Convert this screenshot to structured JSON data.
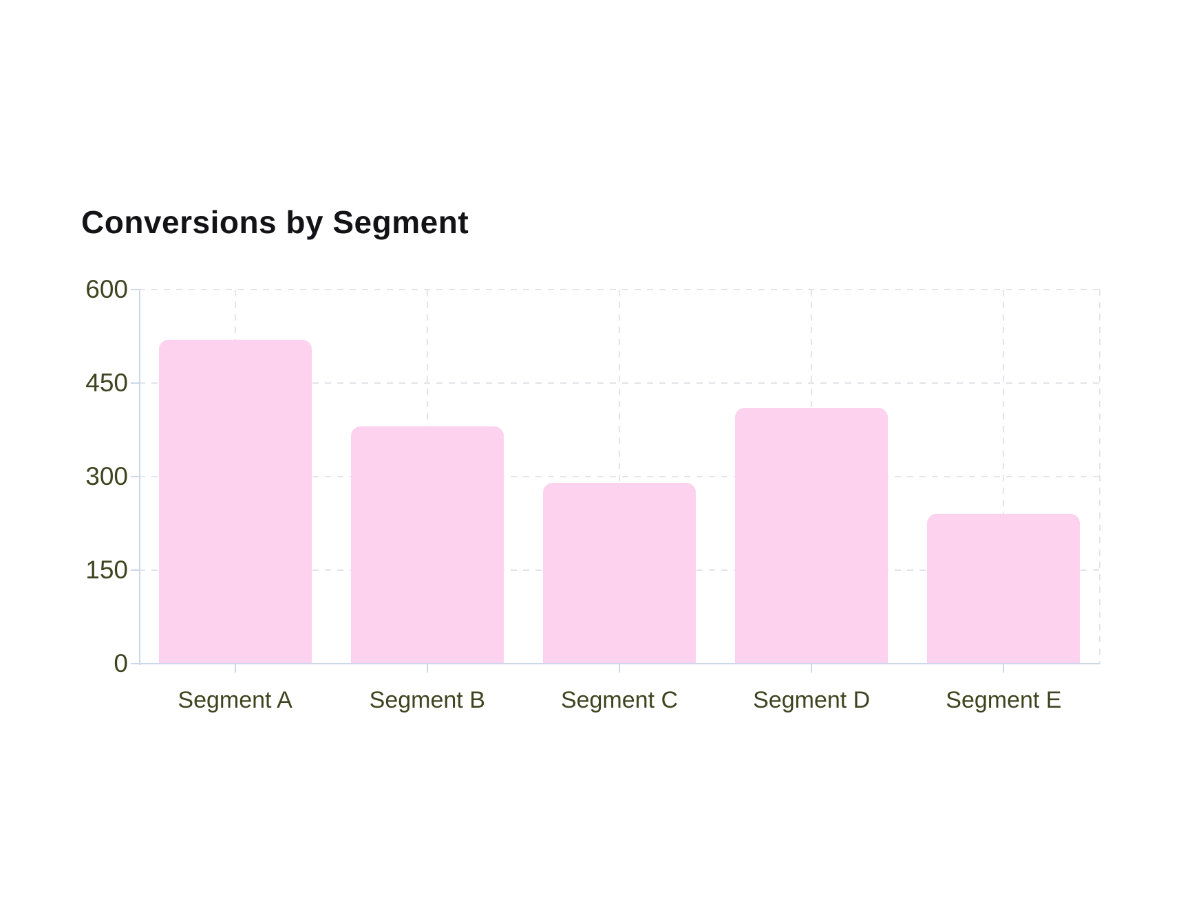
{
  "chart_data": {
    "type": "bar",
    "title": "Conversions by Segment",
    "categories": [
      "Segment A",
      "Segment B",
      "Segment C",
      "Segment D",
      "Segment E"
    ],
    "values": [
      520,
      380,
      290,
      410,
      240
    ],
    "xlabel": "",
    "ylabel": "",
    "ylim": [
      0,
      600
    ],
    "yticks": [
      0,
      150,
      300,
      450,
      600
    ],
    "grid": true,
    "legend": false,
    "gridline_style": "dashed",
    "colors": {
      "bar_fill": "#fdd2ef",
      "axis_line": "#cdd7eb",
      "gridline": "#e2e4ea",
      "tick_label": "#3e441f",
      "title": "#131317",
      "background": "#ffffff"
    }
  }
}
